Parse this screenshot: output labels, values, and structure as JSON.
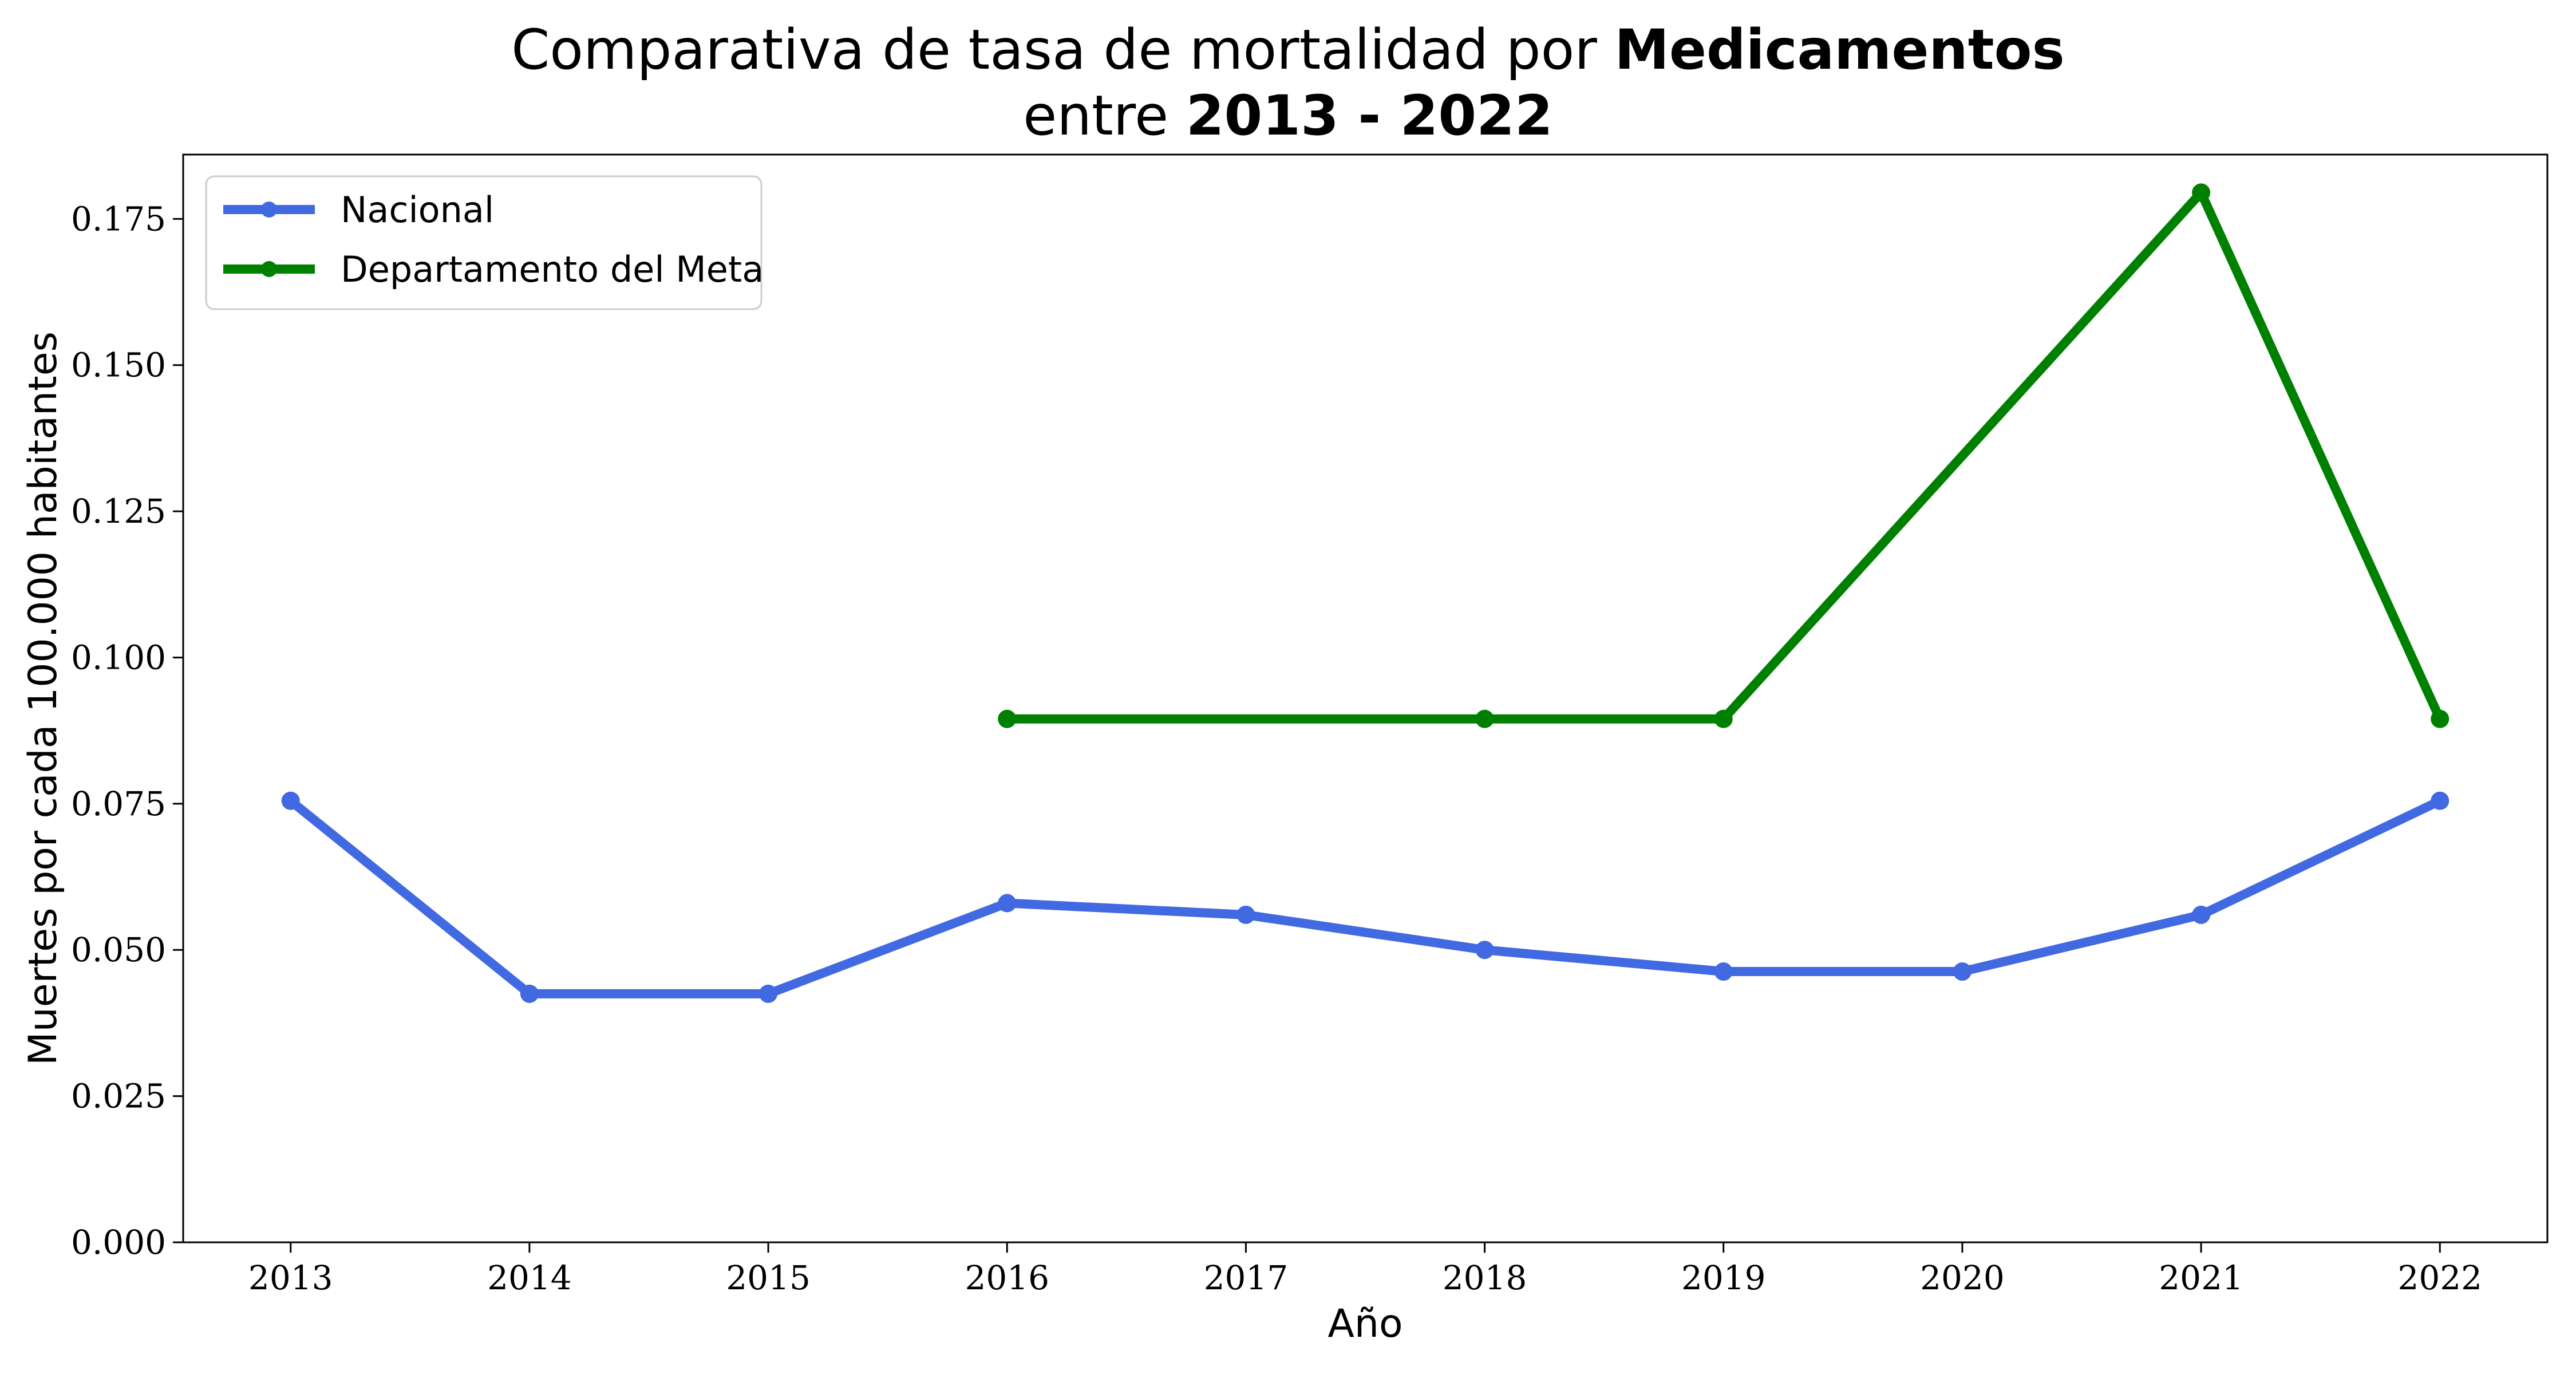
{
  "title": {
    "line1_prefix": "Comparativa de tasa de mortalidad por ",
    "line1_bold": "Medicamentos",
    "line2_prefix": "entre ",
    "line2_bold": "2013 - 2022"
  },
  "chart_data": {
    "type": "line",
    "title": "Comparativa de tasa de mortalidad por Medicamentos entre 2013 - 2022",
    "xlabel": "Año",
    "ylabel": "Muertes por cada 100.000 habitantes",
    "x": [
      2013,
      2014,
      2015,
      2016,
      2017,
      2018,
      2019,
      2020,
      2021,
      2022
    ],
    "x_tick_labels": [
      "2013",
      "2014",
      "2015",
      "2016",
      "2017",
      "2018",
      "2019",
      "2020",
      "2021",
      "2022"
    ],
    "ylim": [
      0,
      0.186
    ],
    "xlim": [
      2012.55,
      2022.45
    ],
    "y_ticks": [
      0.0,
      0.025,
      0.05,
      0.075,
      0.1,
      0.125,
      0.15,
      0.175
    ],
    "y_tick_labels": [
      "0.000",
      "0.025",
      "0.050",
      "0.075",
      "0.100",
      "0.125",
      "0.150",
      "0.175"
    ],
    "grid": false,
    "legend_position": "top-left",
    "series": [
      {
        "name": "Nacional",
        "color": "#4169e1",
        "x": [
          2013,
          2014,
          2015,
          2016,
          2017,
          2018,
          2019,
          2020,
          2021,
          2022
        ],
        "values": [
          0.0755,
          0.0425,
          0.0425,
          0.058,
          0.056,
          0.05,
          0.0463,
          0.0463,
          0.056,
          0.0755
        ]
      },
      {
        "name": "Departamento del Meta",
        "color": "#008000",
        "x": [
          2016,
          2018,
          2019,
          2021,
          2022
        ],
        "values": [
          0.0895,
          0.0895,
          0.0895,
          0.1795,
          0.0895
        ]
      }
    ]
  }
}
